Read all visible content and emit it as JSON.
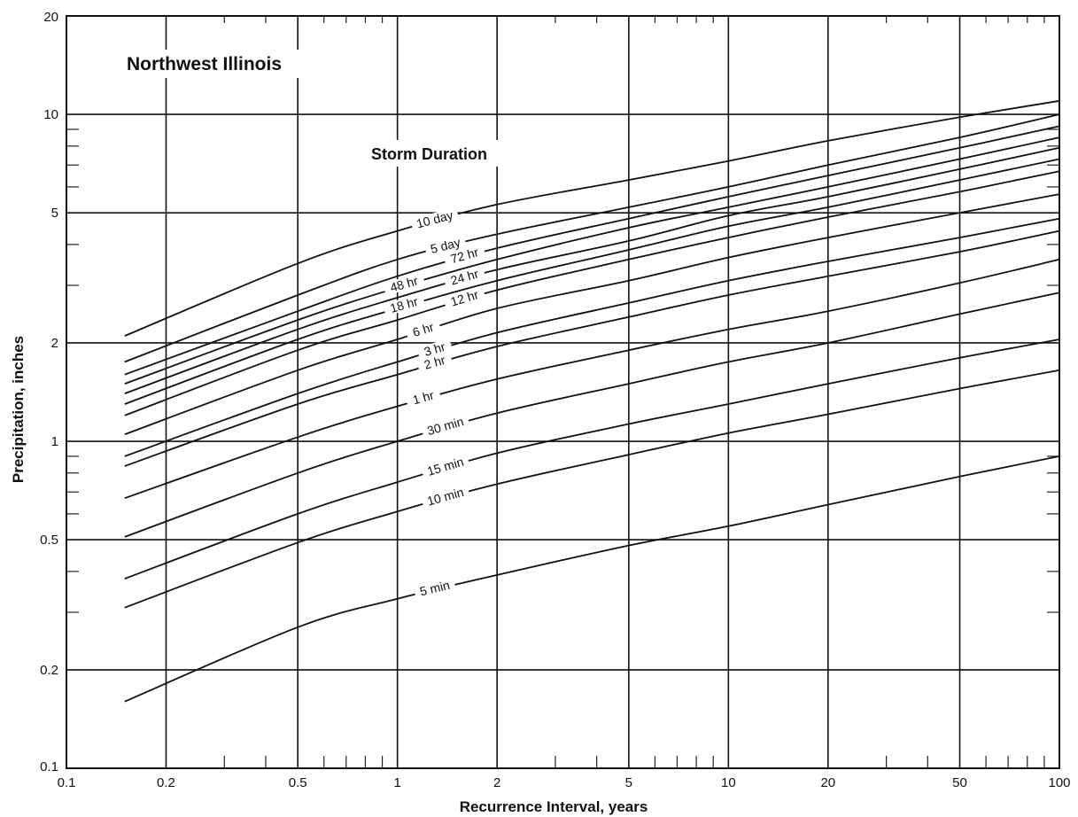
{
  "chart_data": {
    "type": "line",
    "title": "Northwest Illinois",
    "legend_title": "Storm Duration",
    "xlabel": "Recurrence Interval, years",
    "ylabel": "Precipitation, inches",
    "x_scale": "log",
    "y_scale": "log",
    "xlim": [
      0.1,
      100
    ],
    "ylim": [
      0.1,
      20
    ],
    "x_ticks": [
      0.1,
      0.2,
      0.5,
      1,
      2,
      5,
      10,
      20,
      50,
      100
    ],
    "x_tick_labels": [
      "0.1",
      "0.2",
      "0.5",
      "1",
      "2",
      "5",
      "10",
      "20",
      "50",
      "100"
    ],
    "y_ticks": [
      0.1,
      0.2,
      0.5,
      1,
      2,
      5,
      10,
      20
    ],
    "y_tick_labels": [
      "0.1",
      "0.2",
      "0.5",
      "1",
      "2",
      "5",
      "10",
      "20"
    ],
    "grid": true,
    "x": [
      0.15,
      0.5,
      1,
      2,
      5,
      10,
      20,
      50,
      100
    ],
    "series": [
      {
        "name": "10 day",
        "label_x": 1.3,
        "values": [
          2.1,
          3.5,
          4.4,
          5.3,
          6.3,
          7.2,
          8.3,
          9.8,
          11.0
        ]
      },
      {
        "name": "5 day",
        "label_x": 1.4,
        "values": [
          1.75,
          2.8,
          3.6,
          4.3,
          5.2,
          6.0,
          7.0,
          8.5,
          10.0
        ]
      },
      {
        "name": "72 hr",
        "label_x": 1.6,
        "values": [
          1.6,
          2.5,
          3.2,
          3.9,
          4.8,
          5.6,
          6.5,
          7.9,
          9.2
        ]
      },
      {
        "name": "48 hr",
        "label_x": 1.05,
        "values": [
          1.5,
          2.35,
          2.95,
          3.6,
          4.5,
          5.2,
          6.0,
          7.3,
          8.5
        ]
      },
      {
        "name": "24 hr",
        "label_x": 1.6,
        "values": [
          1.4,
          2.2,
          2.75,
          3.35,
          4.1,
          4.9,
          5.6,
          6.8,
          7.9
        ]
      },
      {
        "name": "18 hr",
        "label_x": 1.05,
        "values": [
          1.3,
          2.05,
          2.55,
          3.1,
          3.85,
          4.55,
          5.2,
          6.3,
          7.3
        ]
      },
      {
        "name": "12 hr",
        "label_x": 1.6,
        "values": [
          1.2,
          1.9,
          2.35,
          2.9,
          3.6,
          4.2,
          4.85,
          5.8,
          6.7
        ]
      },
      {
        "name": "6 hr",
        "label_x": 1.2,
        "values": [
          1.05,
          1.65,
          2.05,
          2.55,
          3.1,
          3.65,
          4.2,
          5.0,
          5.7
        ]
      },
      {
        "name": "3 hr",
        "label_x": 1.3,
        "values": [
          0.9,
          1.4,
          1.75,
          2.15,
          2.65,
          3.1,
          3.55,
          4.2,
          4.8
        ]
      },
      {
        "name": "2 hr",
        "label_x": 1.3,
        "values": [
          0.84,
          1.3,
          1.6,
          1.95,
          2.4,
          2.8,
          3.2,
          3.8,
          4.4
        ]
      },
      {
        "name": "1 hr",
        "label_x": 1.2,
        "values": [
          0.67,
          1.03,
          1.28,
          1.55,
          1.9,
          2.2,
          2.5,
          3.05,
          3.6
        ]
      },
      {
        "name": "30 min",
        "label_x": 1.4,
        "values": [
          0.51,
          0.8,
          1.0,
          1.22,
          1.5,
          1.75,
          2.0,
          2.45,
          2.85
        ]
      },
      {
        "name": "15 min",
        "label_x": 1.4,
        "values": [
          0.38,
          0.6,
          0.75,
          0.92,
          1.13,
          1.3,
          1.5,
          1.8,
          2.05
        ]
      },
      {
        "name": "10 min",
        "label_x": 1.4,
        "values": [
          0.31,
          0.49,
          0.61,
          0.74,
          0.91,
          1.06,
          1.21,
          1.45,
          1.65
        ]
      },
      {
        "name": "5 min",
        "label_x": 1.3,
        "values": [
          0.16,
          0.27,
          0.33,
          0.39,
          0.48,
          0.55,
          0.64,
          0.78,
          0.9
        ]
      }
    ]
  }
}
